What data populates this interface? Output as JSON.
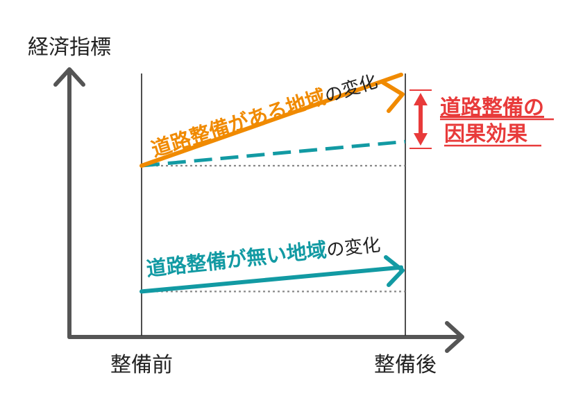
{
  "yaxis_label": "経済指標",
  "xaxis": {
    "before_label": "整備前",
    "after_label": "整備後"
  },
  "treated": {
    "label_main": "道路整備がある地域",
    "label_suffix": "の変化"
  },
  "control": {
    "label_main": "道路整備が無い地域",
    "label_suffix": "の変化"
  },
  "effect": {
    "line1": "道路整備の",
    "line2": "因果効果"
  },
  "colors": {
    "axis": "#555555",
    "treated": "#f08a00",
    "control": "#129aa3",
    "counterfactual": "#129aa3",
    "effect": "#e83a3a",
    "baseline": "#888888",
    "divider": "#222222",
    "text": "#222222"
  },
  "chart_data": {
    "type": "line",
    "x": [
      "整備前",
      "整備後"
    ],
    "series": [
      {
        "name": "道路整備がある地域",
        "values": [
          0.64,
          0.98
        ]
      },
      {
        "name": "",
        "values": [
          0.64,
          0.73
        ]
      },
      {
        "name": "道路整備が無い地域",
        "values": [
          0.17,
          0.26
        ]
      }
    ],
    "ylabel": "経済指標",
    "xlabel": ""
  }
}
